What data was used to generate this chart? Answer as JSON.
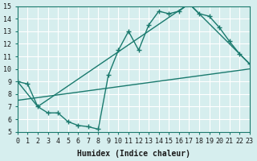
{
  "xlabel": "Humidex (Indice chaleur)",
  "ylabel": "",
  "bg_color": "#d6eeee",
  "line_color": "#1a7a6e",
  "grid_color": "#ffffff",
  "xlim": [
    0,
    23
  ],
  "ylim": [
    5,
    15
  ],
  "xticks": [
    0,
    1,
    2,
    3,
    4,
    5,
    6,
    7,
    8,
    9,
    10,
    11,
    12,
    13,
    14,
    15,
    16,
    17,
    18,
    19,
    20,
    21,
    22,
    23
  ],
  "yticks": [
    5,
    6,
    7,
    8,
    9,
    10,
    11,
    12,
    13,
    14,
    15
  ],
  "line1_x": [
    0,
    1,
    2,
    3,
    4,
    5,
    6,
    7,
    8,
    9,
    10,
    11,
    12,
    13,
    14,
    15,
    16,
    17,
    18,
    19,
    20,
    21,
    22,
    23
  ],
  "line1_y": [
    9.0,
    8.8,
    7.0,
    6.5,
    6.5,
    5.8,
    5.5,
    5.4,
    5.2,
    9.5,
    11.5,
    13.0,
    11.5,
    13.5,
    14.6,
    14.4,
    14.6,
    15.2,
    14.4,
    14.2,
    13.3,
    12.2,
    11.2,
    10.4
  ],
  "line2_x": [
    0,
    2,
    17,
    23
  ],
  "line2_y": [
    9.0,
    7.0,
    15.2,
    10.4
  ],
  "line3_x": [
    0,
    23
  ],
  "line3_y": [
    7.5,
    10.0
  ]
}
